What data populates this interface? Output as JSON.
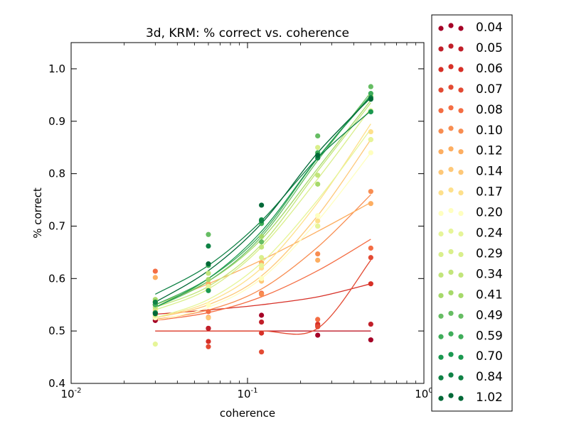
{
  "chart_data": {
    "type": "scatter",
    "title": "3d, KRM: % correct vs. coherence",
    "xlabel": "coherence",
    "ylabel": "% correct",
    "xscale": "log",
    "xlim": [
      0.01,
      1
    ],
    "ylim": [
      0.4,
      1.05
    ],
    "x_ticks": [
      {
        "value": 0.01,
        "base": "10",
        "exp": "-2"
      },
      {
        "value": 0.1,
        "base": "10",
        "exp": "-1"
      },
      {
        "value": 1,
        "base": "10",
        "exp": "0"
      }
    ],
    "y_ticks": [
      {
        "value": 0.4,
        "label": "0.4"
      },
      {
        "value": 0.5,
        "label": "0.5"
      },
      {
        "value": 0.6,
        "label": "0.6"
      },
      {
        "value": 0.7,
        "label": "0.7"
      },
      {
        "value": 0.8,
        "label": "0.8"
      },
      {
        "value": 0.9,
        "label": "0.9"
      },
      {
        "value": 1.0,
        "label": "1.0"
      }
    ],
    "x": [
      0.03,
      0.06,
      0.12,
      0.25,
      0.5
    ],
    "legend_position": "outside-right",
    "series": [
      {
        "name": "0.04",
        "color": "#a50026",
        "values": [
          0.52,
          0.505,
          0.53,
          0.492,
          0.483
        ],
        "fit": [
          0.5,
          0.5,
          0.5,
          0.5,
          0.5
        ]
      },
      {
        "name": "0.05",
        "color": "#c11f29",
        "values": [
          0.535,
          0.505,
          0.517,
          0.51,
          0.513
        ],
        "fit": [
          0.5,
          0.5,
          0.5,
          0.5,
          0.5
        ]
      },
      {
        "name": "0.06",
        "color": "#d73027",
        "values": [
          0.55,
          0.48,
          0.496,
          0.513,
          0.59
        ],
        "fit": [
          0.532,
          0.54,
          0.55,
          0.565,
          0.59
        ]
      },
      {
        "name": "0.07",
        "color": "#e34a33",
        "values": [
          0.525,
          0.47,
          0.46,
          0.508,
          0.64
        ],
        "fit": [
          0.5,
          0.5,
          0.5,
          0.505,
          0.635
        ]
      },
      {
        "name": "0.08",
        "color": "#f46d43",
        "values": [
          0.614,
          0.537,
          0.572,
          0.522,
          0.658
        ],
        "fit": [
          0.52,
          0.535,
          0.565,
          0.615,
          0.675
        ]
      },
      {
        "name": "0.10",
        "color": "#f88d51",
        "values": [
          0.556,
          0.526,
          0.57,
          0.647,
          0.766
        ],
        "fit": [
          0.522,
          0.54,
          0.58,
          0.66,
          0.76
        ]
      },
      {
        "name": "0.12",
        "color": "#fdae61",
        "values": [
          0.602,
          0.59,
          0.63,
          0.635,
          0.743
        ],
        "fit": [
          0.55,
          0.59,
          0.635,
          0.69,
          0.745
        ]
      },
      {
        "name": "0.14",
        "color": "#fec878",
        "values": [
          0.53,
          0.525,
          0.595,
          0.7,
          0.865
        ],
        "fit": [
          0.525,
          0.55,
          0.605,
          0.72,
          0.865
        ]
      },
      {
        "name": "0.17",
        "color": "#fee08b",
        "values": [
          0.54,
          0.58,
          0.62,
          0.71,
          0.88
        ],
        "fit": [
          0.525,
          0.555,
          0.62,
          0.745,
          0.895
        ]
      },
      {
        "name": "0.20",
        "color": "#ffffbf",
        "values": [
          0.525,
          0.55,
          0.6,
          0.72,
          0.84
        ],
        "fit": [
          0.52,
          0.545,
          0.6,
          0.71,
          0.84
        ]
      },
      {
        "name": "0.24",
        "color": "#e6f598",
        "values": [
          0.475,
          0.585,
          0.625,
          0.7,
          0.865
        ],
        "fit": [
          0.525,
          0.56,
          0.63,
          0.75,
          0.885
        ]
      },
      {
        "name": "0.29",
        "color": "#d9ef8b",
        "values": [
          0.53,
          0.61,
          0.64,
          0.85,
          0.92
        ],
        "fit": [
          0.54,
          0.58,
          0.66,
          0.79,
          0.925
        ]
      },
      {
        "name": "0.34",
        "color": "#c2e57b",
        "values": [
          0.545,
          0.61,
          0.66,
          0.797,
          0.948
        ],
        "fit": [
          0.545,
          0.585,
          0.665,
          0.805,
          0.935
        ]
      },
      {
        "name": "0.41",
        "color": "#a6d96a",
        "values": [
          0.56,
          0.598,
          0.68,
          0.78,
          0.945
        ],
        "fit": [
          0.55,
          0.595,
          0.675,
          0.81,
          0.94
        ]
      },
      {
        "name": "0.49",
        "color": "#66bd63",
        "values": [
          0.555,
          0.684,
          0.67,
          0.872,
          0.966
        ],
        "fit": [
          0.545,
          0.595,
          0.68,
          0.825,
          0.955
        ]
      },
      {
        "name": "0.59",
        "color": "#3fad5a",
        "values": [
          0.55,
          0.625,
          0.705,
          0.84,
          0.953
        ],
        "fit": [
          0.55,
          0.6,
          0.685,
          0.83,
          0.95
        ]
      },
      {
        "name": "0.70",
        "color": "#1a9850",
        "values": [
          0.535,
          0.577,
          0.712,
          0.835,
          0.918
        ],
        "fit": [
          0.545,
          0.6,
          0.69,
          0.83,
          0.948
        ]
      },
      {
        "name": "0.84",
        "color": "#0f8245",
        "values": [
          0.555,
          0.662,
          0.71,
          0.83,
          0.945
        ],
        "fit": [
          0.57,
          0.625,
          0.71,
          0.83,
          0.92
        ]
      },
      {
        "name": "1.02",
        "color": "#006837",
        "values": [
          0.533,
          0.628,
          0.74,
          0.835,
          0.942
        ],
        "fit": [
          0.555,
          0.615,
          0.705,
          0.84,
          0.945
        ]
      }
    ]
  }
}
